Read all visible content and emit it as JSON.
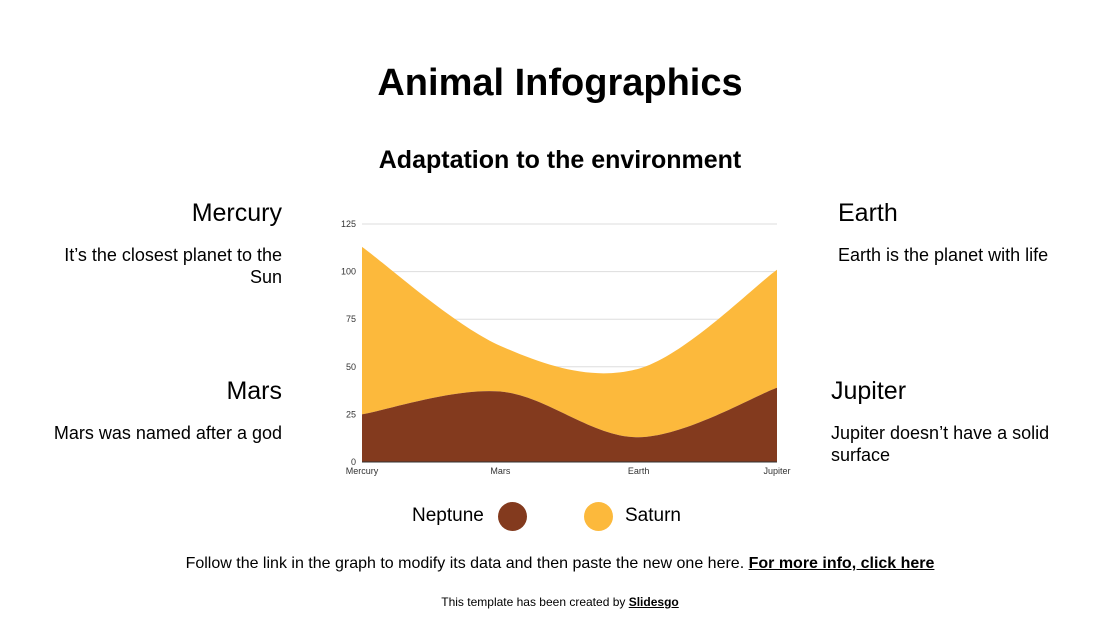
{
  "slide": {
    "title": "Animal Infographics",
    "subtitle": "Adaptation to the environment"
  },
  "blocks": {
    "mercury": {
      "heading": "Mercury",
      "text": "It’s the closest planet to the Sun"
    },
    "mars": {
      "heading": "Mars",
      "text": "Mars was named after a god"
    },
    "earth": {
      "heading": "Earth",
      "text": "Earth is the planet with life"
    },
    "jupiter": {
      "heading": "Jupiter",
      "text": "Jupiter doesn’t have a solid surface"
    }
  },
  "footer": {
    "note": "Follow the link in the graph to modify its data and then paste the new one here.",
    "link": "For more info, click here",
    "credit_prefix": "This template has been created by",
    "credit_brand": "Slidesgo"
  },
  "chart_data": {
    "type": "area",
    "stacked": true,
    "categories": [
      "Mercury",
      "Mars",
      "Earth",
      "Jupiter"
    ],
    "series": [
      {
        "name": "Neptune",
        "values": [
          25,
          37,
          13,
          39
        ],
        "color": "#833a1e"
      },
      {
        "name": "Saturn",
        "values": [
          88,
          24,
          36,
          62
        ],
        "color": "#fcb93c"
      }
    ],
    "yticks": [
      0,
      25,
      50,
      75,
      100,
      125
    ],
    "ylim": [
      0,
      125
    ],
    "grid": true,
    "legend": "bottom",
    "gridColor": "#dddddd"
  }
}
